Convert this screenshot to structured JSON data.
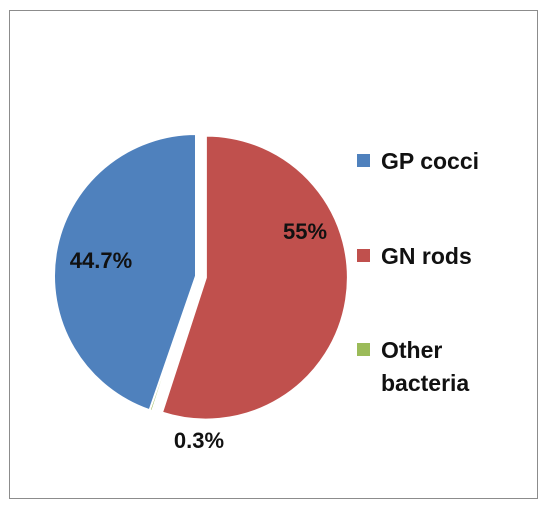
{
  "chart_data": {
    "type": "pie",
    "title": "",
    "slices": [
      {
        "label": "GP cocci",
        "value": 44.7,
        "data_label": "44.7%",
        "color": "#4f81bd",
        "legend_lines": [
          "GP cocci"
        ]
      },
      {
        "label": "GN rods",
        "value": 55,
        "data_label": "55%",
        "color": "#c0504d",
        "legend_lines": [
          "GN rods"
        ]
      },
      {
        "label": "Other bacteria",
        "value": 0.3,
        "data_label": "0.3%",
        "color": "#9bbb59",
        "legend_lines": [
          "Other",
          "bacteria"
        ]
      }
    ],
    "legend_position": "right",
    "exploded_slice": "GN rods"
  }
}
